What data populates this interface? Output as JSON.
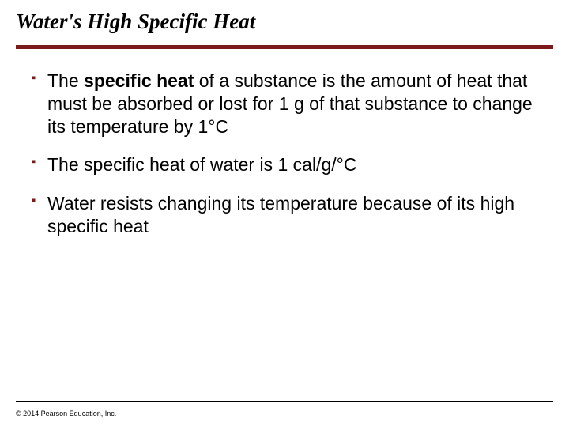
{
  "title": "Water's High Specific Heat",
  "bullets": [
    {
      "pre": "The ",
      "term": "specific heat",
      "post": " of a substance is the amount of heat that must be absorbed or lost for 1 g of that substance to change its temperature by 1°C"
    },
    {
      "pre": "The specific heat of water is 1 cal/g/°C",
      "term": "",
      "post": ""
    },
    {
      "pre": "Water resists changing its temperature because of its high specific heat",
      "term": "",
      "post": ""
    }
  ],
  "copyright": "© 2014 Pearson Education, Inc.",
  "colors": {
    "accent": "#7a1a1a",
    "text": "#000000",
    "background": "#ffffff"
  }
}
